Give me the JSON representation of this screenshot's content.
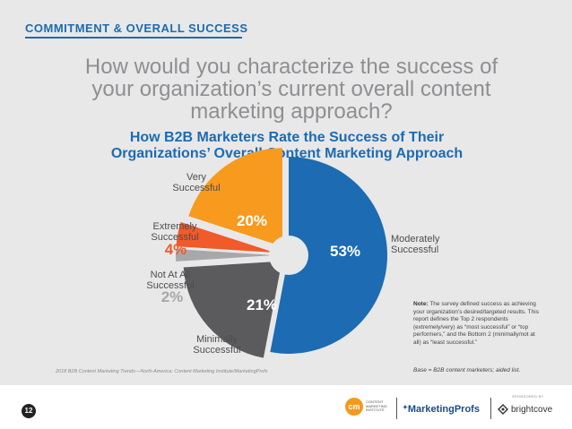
{
  "header": {
    "section_title": "COMMITMENT & OVERALL SUCCESS",
    "question": "How would you characterize the success of your organization’s current overall content marketing approach?"
  },
  "chart_data": {
    "type": "pie",
    "title": "How B2B Marketers Rate the Success of Their Organizations’ Overall Content Marketing Approach",
    "slices": [
      {
        "label": "Moderately Successful",
        "label_lines": [
          "Moderately",
          "Successful"
        ],
        "value": 53,
        "color": "#1c6bb3"
      },
      {
        "label": "Minimally Successful",
        "label_lines": [
          "Minimally",
          "Successful"
        ],
        "value": 21,
        "color": "#5b5b5e"
      },
      {
        "label": "Not At All Successful",
        "label_lines": [
          "Not At All",
          "Successful"
        ],
        "value": 2,
        "color": "#a7a8aa"
      },
      {
        "label": "Extremely Successful",
        "label_lines": [
          "Extremely",
          "Successful"
        ],
        "value": 4,
        "color": "#f15a29"
      },
      {
        "label": "Very Successful",
        "label_lines": [
          "Very",
          "Successful"
        ],
        "value": 20,
        "color": "#f79a1e"
      }
    ],
    "value_suffix": "%",
    "colors": {
      "label_text": "#4d4d4f",
      "value_text": "#ffffff",
      "small_value_text": "#a7a8aa",
      "center": "#e8e8e9"
    }
  },
  "note": {
    "label": "Note:",
    "text": "The survey defined success as achieving your organization’s desired/targeted results. This report defines the Top 2 respondents (extremely/very) as “most successful” or “top performers,” and the Bottom 2 (minimally/not at all) as “least successful.”",
    "base": "Base = B2B content marketers; aided list."
  },
  "footer": {
    "source": "2018 B2B Content Marketing Trends—North America: Content Marketing Institute/MarketingProfs",
    "page_number": "12",
    "logos": {
      "cmi_mark": "cm",
      "cmi_text": "CONTENT MARKETING INSTITUTE",
      "marketingprofs": "MarketingProfs",
      "sponsor_caption": "SPONSORED BY",
      "brightcove": "brightcove"
    }
  }
}
